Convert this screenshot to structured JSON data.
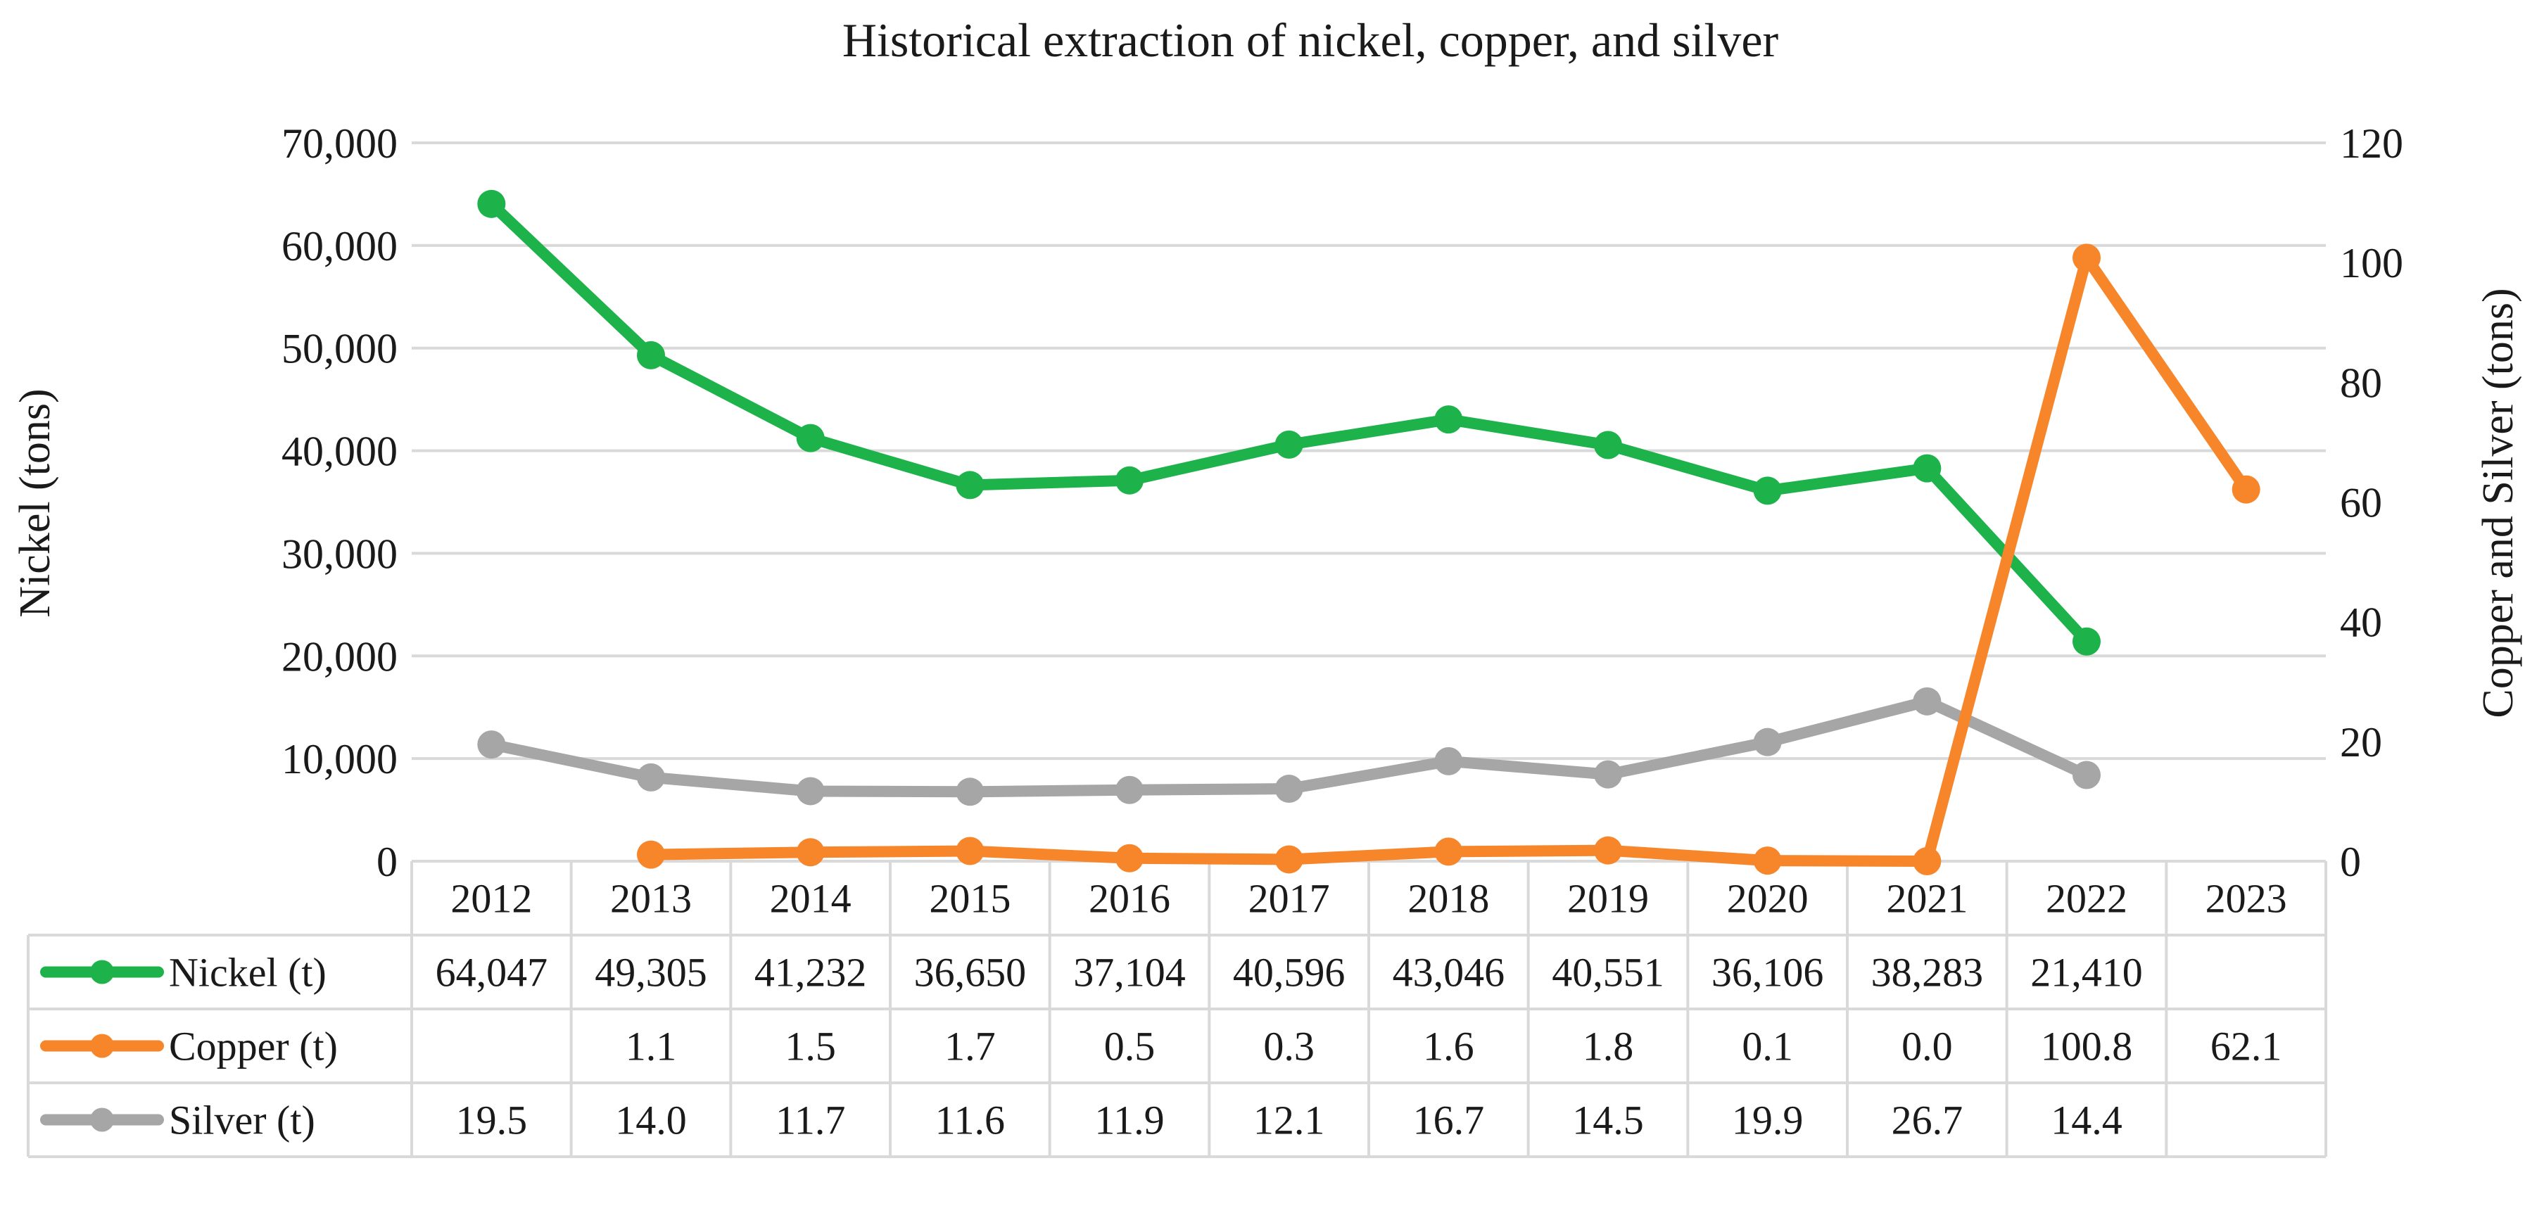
{
  "chart_data": {
    "type": "line",
    "title": "Historical extraction of nickel, copper, and silver",
    "ylabel_left": "Nickel (tons)",
    "ylabel_right": "Copper and Silver (tons)",
    "categories": [
      "2012",
      "2013",
      "2014",
      "2015",
      "2016",
      "2017",
      "2018",
      "2019",
      "2020",
      "2021",
      "2022",
      "2023"
    ],
    "y_left": {
      "min": 0,
      "max": 70000,
      "step": 10000,
      "tick_labels": [
        "0",
        "10,000",
        "20,000",
        "30,000",
        "40,000",
        "50,000",
        "60,000",
        "70,000"
      ]
    },
    "y_right": {
      "min": 0,
      "max": 120,
      "step": 20,
      "tick_labels": [
        "0",
        "20",
        "40",
        "60",
        "80",
        "100",
        "120"
      ]
    },
    "grid": true,
    "series": [
      {
        "name": "Nickel (t)",
        "axis": "left",
        "color": "#1db34a",
        "values": [
          64047,
          49305,
          41232,
          36650,
          37104,
          40596,
          43046,
          40551,
          36106,
          38283,
          21410,
          null
        ],
        "labels": [
          "64,047",
          "49,305",
          "41,232",
          "36,650",
          "37,104",
          "40,596",
          "43,046",
          "40,551",
          "36,106",
          "38,283",
          "21,410",
          ""
        ]
      },
      {
        "name": "Copper (t)",
        "axis": "right",
        "color": "#f7862b",
        "values": [
          null,
          1.1,
          1.5,
          1.7,
          0.5,
          0.3,
          1.6,
          1.8,
          0.1,
          0.0,
          100.8,
          62.1
        ],
        "labels": [
          "",
          "1.1",
          "1.5",
          "1.7",
          "0.5",
          "0.3",
          "1.6",
          "1.8",
          "0.1",
          "0.0",
          "100.8",
          "62.1"
        ]
      },
      {
        "name": "Silver (t)",
        "axis": "right",
        "color": "#a6a6a6",
        "values": [
          19.5,
          14.0,
          11.7,
          11.6,
          11.9,
          12.1,
          16.7,
          14.5,
          19.9,
          26.7,
          14.4,
          null
        ],
        "labels": [
          "19.5",
          "14.0",
          "11.7",
          "11.6",
          "11.9",
          "12.1",
          "16.7",
          "14.5",
          "19.9",
          "26.7",
          "14.4",
          ""
        ]
      }
    ]
  }
}
